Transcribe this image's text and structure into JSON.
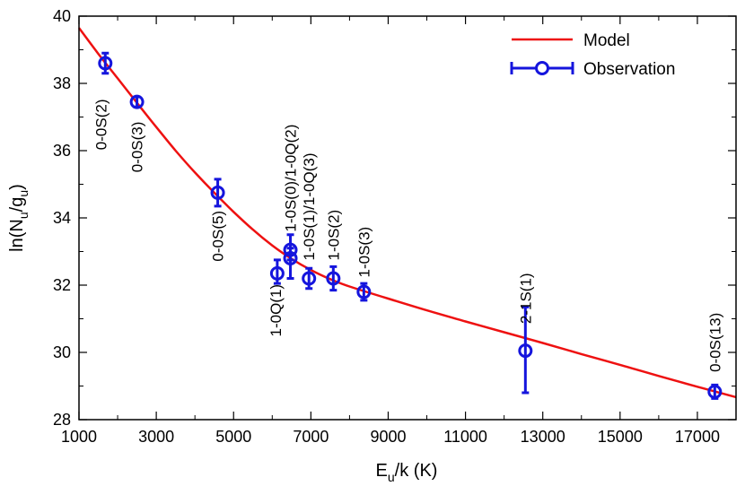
{
  "chart_data": {
    "type": "scatter",
    "xlabel": {
      "main": "E",
      "sub": "u",
      "rest": "/k (K)"
    },
    "ylabel": {
      "pre": "ln(N",
      "sub1": "u",
      "mid": "/g",
      "sub2": "u",
      "post": ")"
    },
    "xlim": [
      1000,
      18000
    ],
    "ylim": [
      28,
      40
    ],
    "xticks": [
      1000,
      3000,
      5000,
      7000,
      9000,
      11000,
      13000,
      15000,
      17000
    ],
    "yticks": [
      28,
      30,
      32,
      34,
      36,
      38,
      40
    ],
    "grid": false,
    "legend": {
      "position": "top-right",
      "entries": [
        {
          "label": "Model",
          "color": "#ee1111",
          "kind": "line"
        },
        {
          "label": "Observation",
          "color": "#1515dd",
          "kind": "errorbar-marker"
        }
      ]
    },
    "series": [
      {
        "name": "Observation",
        "color": "#1515dd",
        "points": [
          {
            "x": 1680,
            "y": 38.6,
            "yerr_low": 0.3,
            "yerr_high": 0.3,
            "label": "0-0S(2)"
          },
          {
            "x": 2500,
            "y": 37.45,
            "yerr_low": 0.15,
            "yerr_high": 0.15,
            "label": "0-0S(3)"
          },
          {
            "x": 4590,
            "y": 34.75,
            "yerr_low": 0.4,
            "yerr_high": 0.4,
            "label": "0-0S(5)"
          },
          {
            "x": 6130,
            "y": 32.35,
            "yerr_low": 0.3,
            "yerr_high": 0.4,
            "label": "1-0Q(1)"
          },
          {
            "x": 6470,
            "y": 33.05,
            "yerr_low": 0.3,
            "yerr_high": 0.45,
            "label": "1-0S(0)/1-0Q(2)"
          },
          {
            "x": 6470,
            "y": 32.8,
            "yerr_low": 0.6,
            "yerr_high": 0.3,
            "label": ""
          },
          {
            "x": 6950,
            "y": 32.2,
            "yerr_low": 0.3,
            "yerr_high": 0.3,
            "label": "1-0S(1)/1-0Q(3)"
          },
          {
            "x": 7580,
            "y": 32.2,
            "yerr_low": 0.35,
            "yerr_high": 0.35,
            "label": "1-0S(2)"
          },
          {
            "x": 8370,
            "y": 31.8,
            "yerr_low": 0.25,
            "yerr_high": 0.25,
            "label": "1-0S(3)"
          },
          {
            "x": 12550,
            "y": 30.05,
            "yerr_low": 1.25,
            "yerr_high": 1.3,
            "label": "2-1S(1)"
          },
          {
            "x": 17450,
            "y": 28.83,
            "yerr_low": 0.2,
            "yerr_high": 0.2,
            "label": "0-0S(13)"
          }
        ]
      },
      {
        "name": "Model",
        "color": "#ee1111",
        "x": [
          1000,
          1500,
          2000,
          2500,
          3000,
          3500,
          4000,
          4500,
          5000,
          5500,
          6000,
          6500,
          7000,
          7500,
          8000,
          9000,
          10000,
          11000,
          12000,
          13000,
          14000,
          15000,
          16000,
          17000,
          18000
        ],
        "y": [
          39.65,
          38.88,
          38.15,
          37.42,
          36.7,
          36.0,
          35.35,
          34.75,
          34.18,
          33.65,
          33.18,
          32.78,
          32.45,
          32.18,
          31.96,
          31.6,
          31.25,
          30.92,
          30.6,
          30.28,
          29.95,
          29.63,
          29.3,
          28.98,
          28.67
        ]
      }
    ]
  }
}
